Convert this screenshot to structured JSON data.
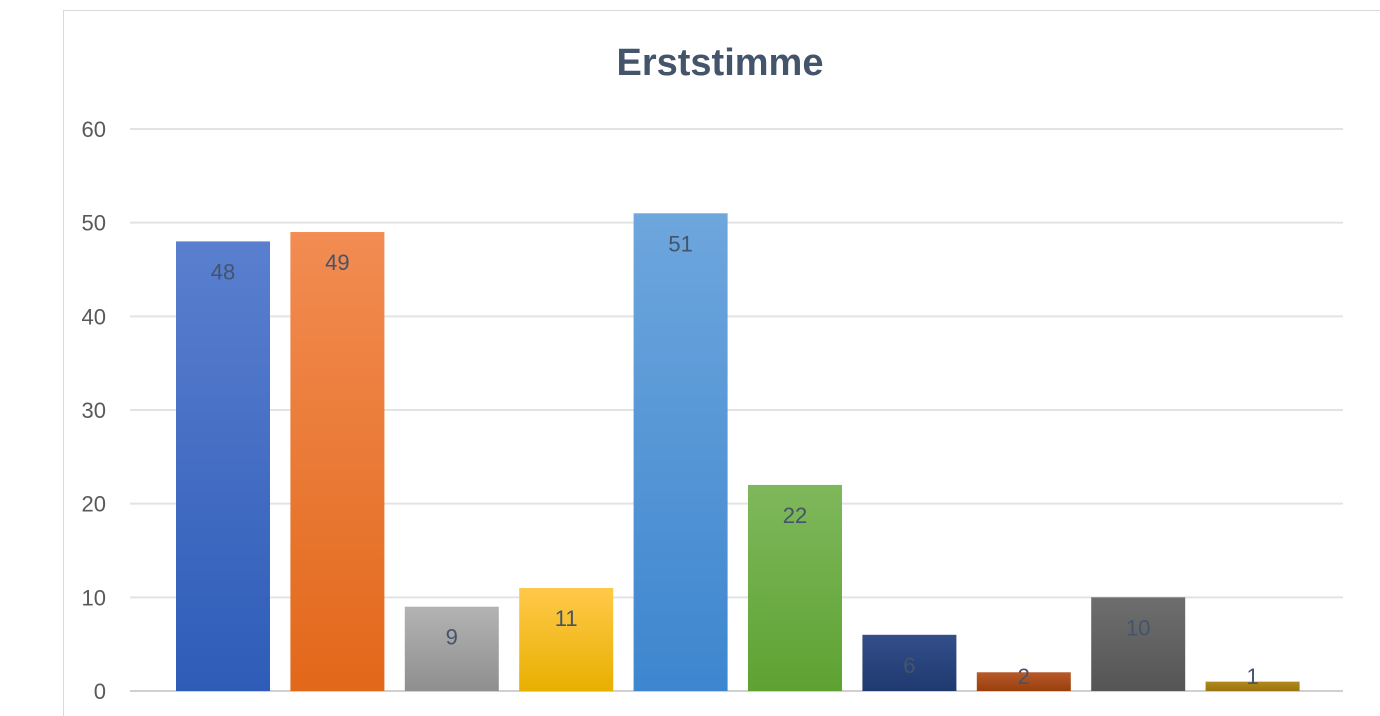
{
  "chart_data": {
    "type": "bar",
    "title": "Erststimme",
    "xlabel": "",
    "ylabel": "",
    "ylim": [
      0,
      60
    ],
    "yticks": [
      0,
      10,
      20,
      30,
      40,
      50,
      60
    ],
    "grid": true,
    "values": [
      48,
      49,
      9,
      11,
      51,
      22,
      6,
      2,
      10,
      1
    ],
    "colors": [
      [
        "#5a7fcf",
        "#2e5cb8"
      ],
      [
        "#f28c52",
        "#e2681a"
      ],
      [
        "#b3b3b3",
        "#8f8f8f"
      ],
      [
        "#ffc94a",
        "#e8b000"
      ],
      [
        "#6ea6dd",
        "#3d86cf"
      ],
      [
        "#7fb85c",
        "#5ea232"
      ],
      [
        "#334f8a",
        "#1f3a70"
      ],
      [
        "#b85a2a",
        "#993f0c"
      ],
      [
        "#6e6e6e",
        "#555555"
      ],
      [
        "#b08a1a",
        "#9a7410"
      ]
    ]
  }
}
